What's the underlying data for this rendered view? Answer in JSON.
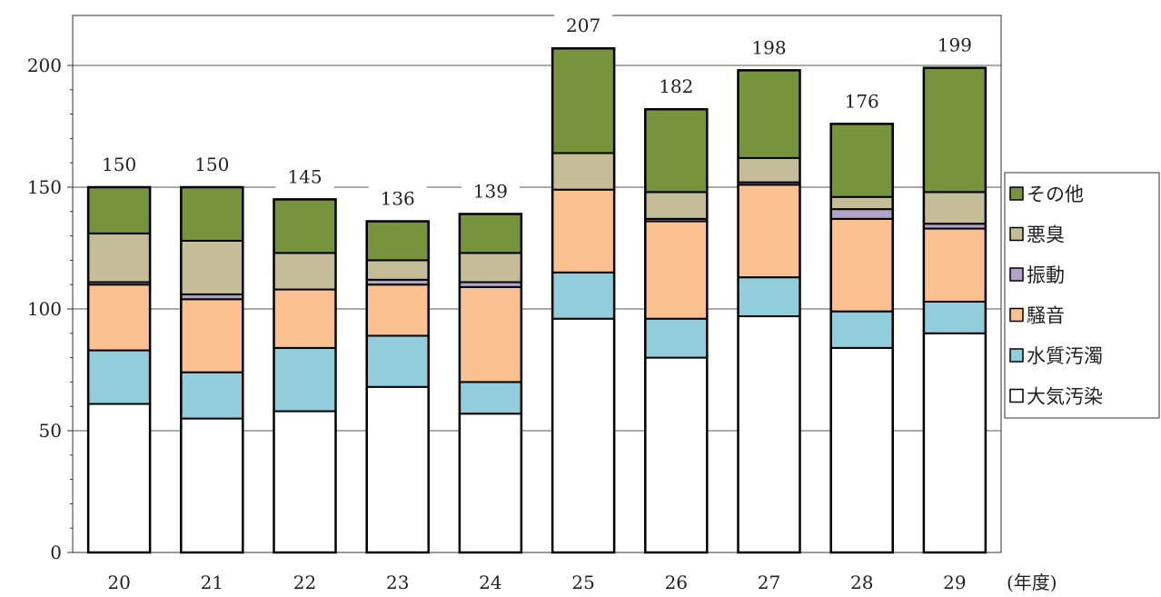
{
  "chart_data": {
    "type": "bar",
    "stacked": true,
    "categories": [
      "20",
      "21",
      "22",
      "23",
      "24",
      "25",
      "26",
      "27",
      "28",
      "29"
    ],
    "xlabel": "(年度)",
    "ylabel": "",
    "ylim": [
      0,
      200
    ],
    "yticks": [
      "0",
      "50",
      "100",
      "150",
      "200"
    ],
    "grid": true,
    "legend_position": "right",
    "series": [
      {
        "name": "大気汚染",
        "color": "#ffffff",
        "values": [
          61,
          55,
          58,
          68,
          57,
          96,
          80,
          97,
          84,
          90
        ]
      },
      {
        "name": "水質汚濁",
        "color": "#92cddc",
        "values": [
          22,
          19,
          26,
          21,
          13,
          19,
          16,
          16,
          15,
          13
        ]
      },
      {
        "name": "騒音",
        "color": "#fac090",
        "values": [
          27,
          30,
          24,
          21,
          39,
          34,
          40,
          38,
          38,
          30
        ]
      },
      {
        "name": "振動",
        "color": "#b3a2c7",
        "values": [
          1,
          2,
          0,
          2,
          2,
          0,
          1,
          1,
          4,
          2
        ]
      },
      {
        "name": "悪臭",
        "color": "#c4bd97",
        "values": [
          20,
          22,
          15,
          8,
          12,
          15,
          11,
          10,
          5,
          13
        ]
      },
      {
        "name": "その他",
        "color": "#77933c",
        "values": [
          19,
          22,
          22,
          16,
          16,
          43,
          34,
          36,
          30,
          51
        ]
      }
    ],
    "totals": [
      "150",
      "150",
      "145",
      "136",
      "139",
      "207",
      "182",
      "198",
      "176",
      "199"
    ]
  }
}
